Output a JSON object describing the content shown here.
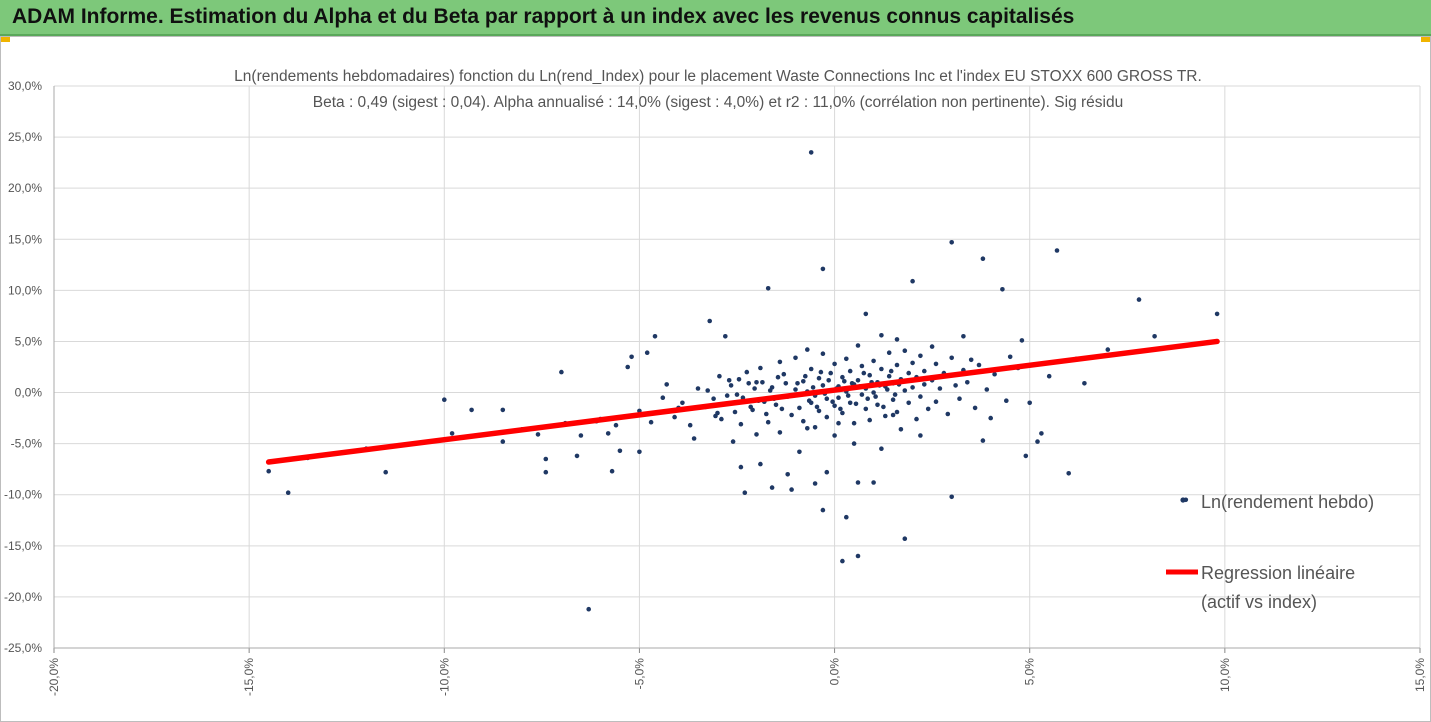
{
  "banner": {
    "title": "ADAM Informe. Estimation du Alpha et du Beta par rapport à un index avec les revenus connus capitalisés"
  },
  "colors": {
    "banner": "#7dc87a",
    "points": "#1f3864",
    "regression": "#ff0000",
    "grid": "#d9d9d9"
  },
  "chart_data": {
    "type": "scatter",
    "title_line1": "Ln(rendements hebdomadaires) fonction du Ln(rend_Index) pour le placement Waste Connections Inc et l'index EU STOXX 600 GROSS TR.",
    "title_line2": "Beta : 0,49 (sigest : 0,04). Alpha annualisé : 14,0% (sigest : 4,0%) et r2 : 11,0% (corrélation non pertinente). Sig résidu",
    "xlim": [
      -20,
      15
    ],
    "ylim": [
      -25,
      30
    ],
    "x_ticks": [
      "-20,0%",
      "-15,0%",
      "-10,0%",
      "-5,0%",
      "0,0%",
      "5,0%",
      "10,0%",
      "15,0%"
    ],
    "y_ticks": [
      "30,0%",
      "25,0%",
      "20,0%",
      "15,0%",
      "10,0%",
      "5,0%",
      "0,0%",
      "-5,0%",
      "-10,0%",
      "-15,0%",
      "-20,0%",
      "-25,0%"
    ],
    "grid": true,
    "legend_position": "right",
    "series": [
      {
        "name": "Ln(rendement hebdo)",
        "kind": "scatter",
        "points": [
          [
            -14.5,
            -7.7
          ],
          [
            -14.0,
            -9.8
          ],
          [
            -11.5,
            -7.8
          ],
          [
            -10.0,
            -0.7
          ],
          [
            -9.3,
            -1.7
          ],
          [
            -8.5,
            -1.7
          ],
          [
            -8.5,
            -4.8
          ],
          [
            -7.4,
            -6.5
          ],
          [
            -7.4,
            -7.8
          ],
          [
            -7.0,
            2.0
          ],
          [
            -6.6,
            -6.2
          ],
          [
            -6.5,
            -4.2
          ],
          [
            -6.3,
            -21.2
          ],
          [
            -6.1,
            -2.8
          ],
          [
            -5.8,
            -4.0
          ],
          [
            -5.7,
            -7.7
          ],
          [
            -5.5,
            -5.7
          ],
          [
            -5.3,
            2.5
          ],
          [
            -5.2,
            3.5
          ],
          [
            -5.0,
            -5.8
          ],
          [
            -4.8,
            3.9
          ],
          [
            -4.6,
            5.5
          ],
          [
            -4.3,
            0.8
          ],
          [
            -4.0,
            -1.5
          ],
          [
            -3.6,
            -4.5
          ],
          [
            -3.2,
            7.0
          ],
          [
            -3.0,
            -2.0
          ],
          [
            -2.8,
            5.5
          ],
          [
            -2.6,
            -4.8
          ],
          [
            -2.4,
            -7.3
          ],
          [
            -2.3,
            -9.8
          ],
          [
            -2.0,
            1.0
          ],
          [
            -1.9,
            -7.0
          ],
          [
            -1.7,
            10.2
          ],
          [
            -1.6,
            -9.3
          ],
          [
            -1.4,
            3.0
          ],
          [
            -1.2,
            -8.0
          ],
          [
            -1.1,
            -9.5
          ],
          [
            -0.9,
            -5.8
          ],
          [
            -0.7,
            -3.5
          ],
          [
            -0.6,
            23.5
          ],
          [
            -0.5,
            -8.9
          ],
          [
            -0.3,
            -11.5
          ],
          [
            -0.3,
            12.1
          ],
          [
            -0.2,
            -7.8
          ],
          [
            0.1,
            -3.0
          ],
          [
            0.2,
            -16.5
          ],
          [
            0.3,
            -12.2
          ],
          [
            0.5,
            -5.0
          ],
          [
            0.6,
            -8.8
          ],
          [
            0.6,
            -16.0
          ],
          [
            0.8,
            7.7
          ],
          [
            1.0,
            -8.8
          ],
          [
            1.2,
            -5.5
          ],
          [
            1.5,
            -2.2
          ],
          [
            1.6,
            5.2
          ],
          [
            1.8,
            -14.3
          ],
          [
            2.0,
            10.9
          ],
          [
            2.2,
            -4.2
          ],
          [
            2.5,
            4.5
          ],
          [
            3.0,
            14.7
          ],
          [
            3.0,
            -10.2
          ],
          [
            3.3,
            5.5
          ],
          [
            3.5,
            3.2
          ],
          [
            3.8,
            13.1
          ],
          [
            3.8,
            -4.7
          ],
          [
            4.0,
            -2.5
          ],
          [
            4.3,
            10.1
          ],
          [
            4.5,
            3.5
          ],
          [
            4.8,
            5.1
          ],
          [
            4.9,
            -6.2
          ],
          [
            5.0,
            -1.0
          ],
          [
            5.2,
            -4.8
          ],
          [
            5.3,
            -4.0
          ],
          [
            5.7,
            13.9
          ],
          [
            6.0,
            -7.9
          ],
          [
            6.2,
            3.3
          ],
          [
            7.0,
            4.2
          ],
          [
            7.8,
            9.1
          ],
          [
            8.2,
            5.5
          ],
          [
            9.0,
            -10.5
          ],
          [
            9.8,
            7.7
          ],
          [
            -13.5,
            -6.4
          ],
          [
            -12.0,
            -5.5
          ],
          [
            -9.8,
            -4.0
          ],
          [
            -8.0,
            -3.6
          ],
          [
            -7.6,
            -4.1
          ],
          [
            -6.9,
            -3.0
          ],
          [
            -6.0,
            -2.6
          ],
          [
            -5.6,
            -3.2
          ],
          [
            -5.0,
            -1.8
          ],
          [
            -4.7,
            -2.9
          ],
          [
            -4.4,
            -0.5
          ],
          [
            -4.1,
            -2.4
          ],
          [
            -3.9,
            -1.0
          ],
          [
            -3.7,
            -3.2
          ],
          [
            -3.5,
            0.4
          ],
          [
            -3.3,
            -1.4
          ],
          [
            -3.1,
            -0.6
          ],
          [
            -2.9,
            -2.6
          ],
          [
            -2.7,
            1.2
          ],
          [
            -2.5,
            -0.2
          ],
          [
            -2.4,
            -3.1
          ],
          [
            -2.2,
            0.9
          ],
          [
            -2.1,
            -1.7
          ],
          [
            -2.0,
            -4.1
          ],
          [
            -1.9,
            2.4
          ],
          [
            -1.8,
            -0.9
          ],
          [
            -1.7,
            -2.9
          ],
          [
            -1.6,
            0.5
          ],
          [
            -1.5,
            -1.2
          ],
          [
            -1.4,
            -3.9
          ],
          [
            -1.3,
            1.8
          ],
          [
            -1.2,
            -0.4
          ],
          [
            -1.1,
            -2.2
          ],
          [
            -1.0,
            0.3
          ],
          [
            -1.0,
            3.4
          ],
          [
            -0.9,
            -1.5
          ],
          [
            -0.8,
            1.1
          ],
          [
            -0.8,
            -2.8
          ],
          [
            -0.7,
            0.1
          ],
          [
            -0.7,
            4.2
          ],
          [
            -0.6,
            -1.0
          ],
          [
            -0.6,
            2.3
          ],
          [
            -0.5,
            -0.3
          ],
          [
            -0.5,
            -3.4
          ],
          [
            -0.4,
            1.4
          ],
          [
            -0.4,
            -1.8
          ],
          [
            -0.3,
            0.7
          ],
          [
            -0.3,
            3.8
          ],
          [
            -0.2,
            -0.6
          ],
          [
            -0.2,
            -2.4
          ],
          [
            -0.1,
            1.9
          ],
          [
            -0.1,
            0.2
          ],
          [
            0.0,
            -1.3
          ],
          [
            0.0,
            2.8
          ],
          [
            0.0,
            -4.2
          ],
          [
            0.1,
            0.6
          ],
          [
            0.1,
            -0.5
          ],
          [
            0.2,
            1.5
          ],
          [
            0.2,
            -2.0
          ],
          [
            0.3,
            3.3
          ],
          [
            0.3,
            0.1
          ],
          [
            0.4,
            -1.0
          ],
          [
            0.4,
            2.1
          ],
          [
            0.5,
            0.8
          ],
          [
            0.5,
            -3.0
          ],
          [
            0.6,
            1.2
          ],
          [
            0.6,
            4.6
          ],
          [
            0.7,
            -0.2
          ],
          [
            0.7,
            2.6
          ],
          [
            0.8,
            -1.6
          ],
          [
            0.8,
            0.4
          ],
          [
            0.9,
            1.7
          ],
          [
            0.9,
            -2.7
          ],
          [
            1.0,
            3.1
          ],
          [
            1.0,
            0.0
          ],
          [
            1.1,
            1.0
          ],
          [
            1.1,
            -1.2
          ],
          [
            1.2,
            2.3
          ],
          [
            1.2,
            5.6
          ],
          [
            1.3,
            0.6
          ],
          [
            1.3,
            -2.3
          ],
          [
            1.4,
            1.6
          ],
          [
            1.4,
            3.9
          ],
          [
            1.5,
            -0.7
          ],
          [
            1.5,
            0.9
          ],
          [
            1.6,
            2.7
          ],
          [
            1.6,
            -1.9
          ],
          [
            1.7,
            1.3
          ],
          [
            1.7,
            -3.6
          ],
          [
            1.8,
            0.2
          ],
          [
            1.8,
            4.1
          ],
          [
            1.9,
            1.9
          ],
          [
            1.9,
            -1.0
          ],
          [
            2.0,
            2.9
          ],
          [
            2.0,
            0.5
          ],
          [
            2.1,
            -2.6
          ],
          [
            2.1,
            1.5
          ],
          [
            2.2,
            3.6
          ],
          [
            2.2,
            -0.4
          ],
          [
            2.3,
            2.1
          ],
          [
            2.3,
            0.8
          ],
          [
            2.4,
            -1.6
          ],
          [
            2.5,
            1.2
          ],
          [
            2.6,
            2.8
          ],
          [
            2.6,
            -0.9
          ],
          [
            2.7,
            0.4
          ],
          [
            2.8,
            1.9
          ],
          [
            2.9,
            -2.1
          ],
          [
            3.0,
            3.4
          ],
          [
            3.1,
            0.7
          ],
          [
            3.2,
            -0.6
          ],
          [
            3.3,
            2.2
          ],
          [
            3.4,
            1.0
          ],
          [
            3.6,
            -1.5
          ],
          [
            3.7,
            2.7
          ],
          [
            3.9,
            0.3
          ],
          [
            4.1,
            1.8
          ],
          [
            4.4,
            -0.8
          ],
          [
            4.7,
            2.4
          ],
          [
            5.5,
            1.6
          ],
          [
            6.4,
            0.9
          ],
          [
            -0.95,
            0.9
          ],
          [
            -0.85,
            -0.2
          ],
          [
            -0.75,
            1.6
          ],
          [
            -0.65,
            -0.8
          ],
          [
            -0.55,
            0.5
          ],
          [
            -0.45,
            -1.4
          ],
          [
            -0.35,
            2.0
          ],
          [
            -0.25,
            -0.1
          ],
          [
            -0.15,
            1.2
          ],
          [
            -0.05,
            -0.9
          ],
          [
            0.05,
            0.4
          ],
          [
            0.15,
            -1.6
          ],
          [
            0.25,
            1.1
          ],
          [
            0.35,
            -0.3
          ],
          [
            0.45,
            0.9
          ],
          [
            0.55,
            -1.1
          ],
          [
            0.65,
            0.6
          ],
          [
            0.75,
            1.9
          ],
          [
            0.85,
            -0.6
          ],
          [
            0.95,
            1.0
          ],
          [
            1.05,
            -0.4
          ],
          [
            1.15,
            0.7
          ],
          [
            1.25,
            -1.4
          ],
          [
            1.35,
            0.3
          ],
          [
            1.45,
            2.1
          ],
          [
            1.55,
            -0.2
          ],
          [
            1.65,
            0.8
          ],
          [
            -1.25,
            0.9
          ],
          [
            -1.35,
            -1.6
          ],
          [
            -1.45,
            1.5
          ],
          [
            -1.55,
            -0.6
          ],
          [
            -1.65,
            0.2
          ],
          [
            -1.75,
            -2.1
          ],
          [
            -1.85,
            1.0
          ],
          [
            -1.95,
            -0.8
          ],
          [
            -2.05,
            0.4
          ],
          [
            -2.15,
            -1.4
          ],
          [
            -2.25,
            2.0
          ],
          [
            -2.35,
            -0.5
          ],
          [
            -2.45,
            1.3
          ],
          [
            -2.55,
            -1.9
          ],
          [
            -2.65,
            0.7
          ],
          [
            -2.75,
            -0.3
          ],
          [
            -2.85,
            -1.1
          ],
          [
            -2.95,
            1.6
          ],
          [
            -3.05,
            -2.3
          ],
          [
            -3.25,
            0.2
          ]
        ]
      },
      {
        "name": "Regression linéaire\n(actif vs index)",
        "legend_line1": "Regression linéaire",
        "legend_line2": "(actif vs index)",
        "kind": "line",
        "x": [
          -14.5,
          9.8
        ],
        "y": [
          -6.8,
          5.0
        ]
      }
    ]
  }
}
